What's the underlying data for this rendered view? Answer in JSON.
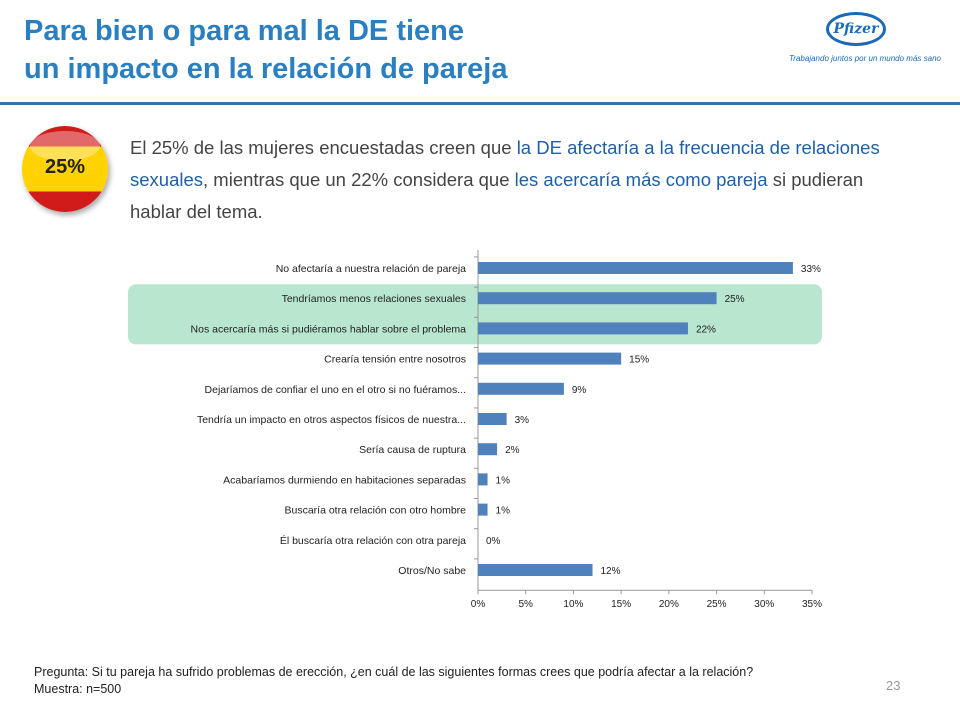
{
  "header": {
    "title_line1": "Para bien o para mal la DE tiene",
    "title_line2": "un impacto en la relación de pareja"
  },
  "logo": {
    "brand": "Pfizer",
    "tagline": "Trabajando juntos por un mundo más sano"
  },
  "badge": {
    "label": "25%",
    "flag": "spain"
  },
  "intro": {
    "p1": "El 25% de las mujeres encuestadas creen que ",
    "h1": "la DE afectaría a la frecuencia de relaciones sexuales",
    "p2": ", mientras que un 22% considera que ",
    "h2": "les acercaría más como pareja",
    "p3": " si pudieran hablar del tema."
  },
  "chart_data": {
    "type": "bar",
    "orientation": "horizontal",
    "categories": [
      "No afectaría a nuestra relación de pareja",
      "Tendríamos menos relaciones sexuales",
      "Nos acercaría más si pudiéramos hablar sobre el problema",
      "Crearía tensión entre nosotros",
      "Dejaríamos de confiar el uno en el otro si no fuéramos...",
      "Tendría un impacto en otros aspectos físicos de nuestra...",
      "Sería causa de ruptura",
      "Acabaríamos durmiendo  en habitaciones separadas",
      "Buscaría otra relación con otro hombre",
      "Él buscaría otra relación con otra pareja",
      "Otros/No sabe"
    ],
    "values": [
      33,
      25,
      22,
      15,
      9,
      3,
      2,
      1,
      1,
      0,
      12
    ],
    "value_labels": [
      "33%",
      "25%",
      "22%",
      "15%",
      "9%",
      "3%",
      "2%",
      "1%",
      "1%",
      "0%",
      "12%"
    ],
    "xlim": [
      0,
      35
    ],
    "xticks": [
      "0%",
      "5%",
      "10%",
      "15%",
      "20%",
      "25%",
      "30%",
      "35%"
    ],
    "highlighted_categories": [
      1,
      2
    ],
    "bar_color": "#4f81bd",
    "highlight_color": "#b8e6cf",
    "grid": false
  },
  "footnote": {
    "question": "Pregunta: Si tu pareja ha sufrido problemas de erección, ¿en cuál de las siguientes formas crees que podría afectar a la relación?",
    "sample": "Muestra: n=500"
  },
  "page_number": "23"
}
